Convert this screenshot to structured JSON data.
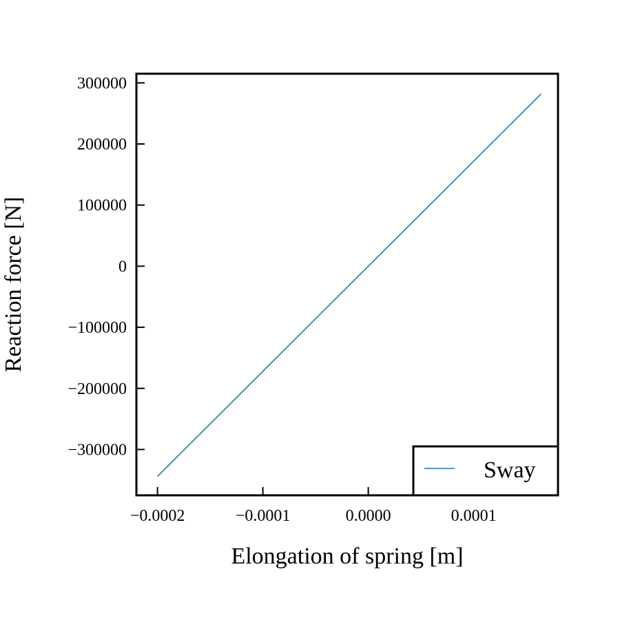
{
  "chart_data": {
    "type": "line",
    "title": "",
    "xlabel": "Elongation of spring [m]",
    "ylabel": "Reaction force [N]",
    "xlim": [
      -0.00022,
      0.00018
    ],
    "ylim": [
      -375000,
      315000
    ],
    "x_ticks": [
      {
        "value": -0.0002,
        "label": "−0.0002"
      },
      {
        "value": -0.0001,
        "label": "−0.0001"
      },
      {
        "value": 0.0,
        "label": "0.0000"
      },
      {
        "value": 0.0001,
        "label": "0.0001"
      }
    ],
    "y_ticks": [
      {
        "value": 300000,
        "label": "300000"
      },
      {
        "value": 200000,
        "label": "200000"
      },
      {
        "value": 100000,
        "label": "100000"
      },
      {
        "value": 0,
        "label": "0"
      },
      {
        "value": -100000,
        "label": "−100000"
      },
      {
        "value": -200000,
        "label": "−200000"
      },
      {
        "value": -300000,
        "label": "−300000"
      }
    ],
    "grid": false,
    "legend_position": "bottom-right",
    "series": [
      {
        "name": "Sway",
        "color": "#1f77a0",
        "x": [
          -0.0002,
          0.000164
        ],
        "y": [
          -344000,
          282000
        ]
      }
    ]
  }
}
